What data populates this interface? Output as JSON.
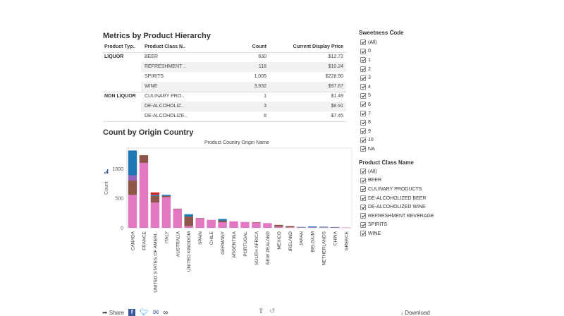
{
  "table": {
    "title": "Metrics by Product Hierarchy",
    "headers": [
      "Product Typ..",
      "Product Class N..",
      "Count",
      "Current Display Price"
    ],
    "groups": [
      {
        "name": "LIQUOR",
        "rows": [
          {
            "cls": "BEER",
            "count": "630",
            "price": "$12.72"
          },
          {
            "cls": "REFRESHMENT ..",
            "count": "118",
            "price": "$10.24"
          },
          {
            "cls": "SPIRITS",
            "count": "1,005",
            "price": "$228.90"
          },
          {
            "cls": "WINE",
            "count": "3,932",
            "price": "$97.67"
          }
        ]
      },
      {
        "name": "NON LIQUOR",
        "rows": [
          {
            "cls": "CULINARY PRO..",
            "count": "1",
            "price": "$1.49"
          },
          {
            "cls": "DE-ALCOHOLIZ..",
            "count": "3",
            "price": "$8.91"
          },
          {
            "cls": "DE-ALCOHOLIZE..",
            "count": "8",
            "price": "$7.45"
          }
        ]
      }
    ]
  },
  "chart": {
    "title": "Count by Origin Country",
    "header": "Product Country Origin Name"
  },
  "chart_data": {
    "type": "bar",
    "stacked": true,
    "title": "Count by Origin Country",
    "xlabel": "Product Country Origin Name",
    "ylabel": "Count",
    "ylim": [
      0,
      1350
    ],
    "yticks": [
      0,
      500,
      1000
    ],
    "categories": [
      "CANADA",
      "FRANCE",
      "UNITED STATES OF AMERI..",
      "ITALY",
      "AUSTRALIA",
      "UNITED KINGDOM",
      "SPAIN",
      "CHILE",
      "GERMANY",
      "ARGENTINA",
      "PORTUGAL",
      "SOUTH AFRICA",
      "NEW ZEALAND",
      "MEXICO",
      "IRELAND",
      "JAPAN",
      "BELGIUM",
      "NETHERLANDS",
      "CHINA",
      "GREECE"
    ],
    "series": [
      {
        "color": "#e377c2",
        "values": [
          560,
          1100,
          430,
          520,
          320,
          30,
          160,
          135,
          95,
          110,
          100,
          90,
          80,
          20,
          10,
          10,
          8,
          8,
          8,
          5
        ]
      },
      {
        "color": "#8c564b",
        "values": [
          240,
          130,
          110,
          20,
          5,
          160,
          5,
          0,
          25,
          0,
          0,
          5,
          0,
          30,
          20,
          0,
          0,
          0,
          0,
          0
        ]
      },
      {
        "color": "#9467bd",
        "values": [
          90,
          0,
          0,
          0,
          0,
          0,
          0,
          0,
          0,
          0,
          0,
          0,
          0,
          0,
          0,
          0,
          0,
          0,
          0,
          0
        ]
      },
      {
        "color": "#1f77b4",
        "values": [
          420,
          0,
          20,
          20,
          0,
          40,
          0,
          0,
          30,
          0,
          0,
          0,
          0,
          0,
          0,
          5,
          15,
          10,
          5,
          0
        ]
      },
      {
        "color": "#d62728",
        "values": [
          0,
          0,
          40,
          0,
          0,
          0,
          0,
          0,
          0,
          0,
          0,
          0,
          0,
          0,
          0,
          0,
          0,
          0,
          0,
          0
        ]
      }
    ]
  },
  "filters": {
    "sweetness": {
      "title": "Sweetness Code",
      "items": [
        "(All)",
        "0",
        "1",
        "2",
        "3",
        "4",
        "5",
        "6",
        "7",
        "8",
        "9",
        "10",
        "NA"
      ]
    },
    "product_class": {
      "title": "Product Class Name",
      "items": [
        "(All)",
        "BEER",
        "CULINARY PRODUCTS",
        "DE-ALCOHOLIZED BEER",
        "DE-ALCOHOLIZED WINE",
        "REFRESHMENT BEVERAGE",
        "SPIRITS",
        "WINE"
      ]
    }
  },
  "toolbar": {
    "share_label": "Share",
    "download_label": "Download",
    "share_icon": "share-arrow-icon",
    "download_icon": "download-arrow-icon"
  }
}
